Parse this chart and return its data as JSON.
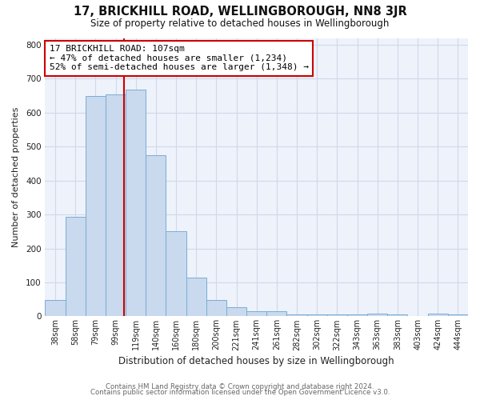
{
  "title": "17, BRICKHILL ROAD, WELLINGBOROUGH, NN8 3JR",
  "subtitle": "Size of property relative to detached houses in Wellingborough",
  "xlabel": "Distribution of detached houses by size in Wellingborough",
  "ylabel": "Number of detached properties",
  "bar_labels": [
    "38sqm",
    "58sqm",
    "79sqm",
    "99sqm",
    "119sqm",
    "140sqm",
    "160sqm",
    "180sqm",
    "200sqm",
    "221sqm",
    "241sqm",
    "261sqm",
    "282sqm",
    "302sqm",
    "322sqm",
    "343sqm",
    "363sqm",
    "383sqm",
    "403sqm",
    "424sqm",
    "444sqm"
  ],
  "bar_values": [
    48,
    293,
    650,
    655,
    668,
    475,
    250,
    113,
    48,
    28,
    15,
    15,
    5,
    5,
    5,
    5,
    8,
    5,
    0,
    8,
    5
  ],
  "bar_color": "#c9d9ee",
  "bar_edge_color": "#7aadd4",
  "vline_pos": 3.4,
  "vline_color": "#cc0000",
  "annotation_title": "17 BRICKHILL ROAD: 107sqm",
  "annotation_line1": "← 47% of detached houses are smaller (1,234)",
  "annotation_line2": "52% of semi-detached houses are larger (1,348) →",
  "annotation_box_facecolor": "#ffffff",
  "annotation_box_edgecolor": "#cc0000",
  "ylim": [
    0,
    820
  ],
  "yticks": [
    0,
    100,
    200,
    300,
    400,
    500,
    600,
    700,
    800
  ],
  "grid_color": "#d0d8e8",
  "plot_bg_color": "#eef2fa",
  "fig_bg_color": "#ffffff",
  "footer1": "Contains HM Land Registry data © Crown copyright and database right 2024.",
  "footer2": "Contains public sector information licensed under the Open Government Licence v3.0."
}
